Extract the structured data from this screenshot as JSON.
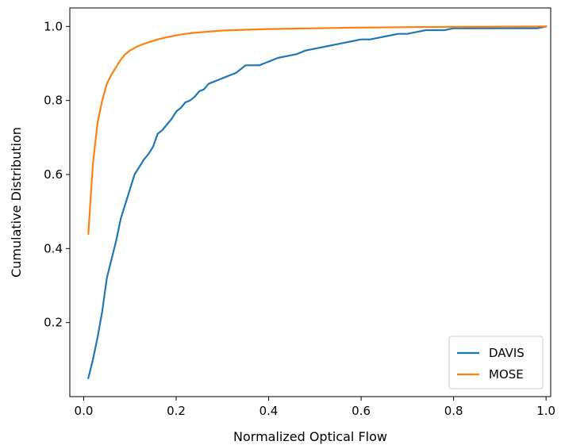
{
  "chart_data": {
    "type": "line",
    "title": "",
    "xlabel": "Normalized Optical Flow",
    "ylabel": "Cumulative Distribution",
    "xlim": [
      -0.03,
      1.01
    ],
    "ylim": [
      0.0,
      1.05
    ],
    "xticks": [
      0.0,
      0.2,
      0.4,
      0.6,
      0.8,
      1.0
    ],
    "xtick_labels": [
      "0.0",
      "0.2",
      "0.4",
      "0.6",
      "0.8",
      "1.0"
    ],
    "yticks": [
      0.2,
      0.4,
      0.6,
      0.8,
      1.0
    ],
    "ytick_labels": [
      "0.2",
      "0.4",
      "0.6",
      "0.8",
      "1.0"
    ],
    "grid": false,
    "legend": "lower-right",
    "series": [
      {
        "name": "DAVIS",
        "color": "#1f77b4",
        "x": [
          0.01,
          0.02,
          0.03,
          0.04,
          0.05,
          0.06,
          0.07,
          0.08,
          0.09,
          0.1,
          0.11,
          0.12,
          0.13,
          0.14,
          0.15,
          0.16,
          0.17,
          0.18,
          0.19,
          0.2,
          0.21,
          0.22,
          0.23,
          0.24,
          0.25,
          0.26,
          0.27,
          0.28,
          0.29,
          0.3,
          0.31,
          0.32,
          0.33,
          0.34,
          0.35,
          0.36,
          0.37,
          0.38,
          0.39,
          0.4,
          0.42,
          0.44,
          0.46,
          0.48,
          0.5,
          0.52,
          0.54,
          0.56,
          0.58,
          0.6,
          0.62,
          0.64,
          0.66,
          0.68,
          0.7,
          0.72,
          0.74,
          0.76,
          0.78,
          0.8,
          0.85,
          0.9,
          0.95,
          0.98,
          1.0
        ],
        "values": [
          0.05,
          0.1,
          0.16,
          0.23,
          0.32,
          0.37,
          0.42,
          0.48,
          0.52,
          0.56,
          0.6,
          0.62,
          0.64,
          0.655,
          0.675,
          0.71,
          0.72,
          0.735,
          0.75,
          0.77,
          0.78,
          0.795,
          0.8,
          0.81,
          0.825,
          0.83,
          0.845,
          0.85,
          0.855,
          0.86,
          0.865,
          0.87,
          0.875,
          0.885,
          0.895,
          0.895,
          0.895,
          0.895,
          0.9,
          0.905,
          0.915,
          0.92,
          0.925,
          0.935,
          0.94,
          0.945,
          0.95,
          0.955,
          0.96,
          0.965,
          0.965,
          0.97,
          0.975,
          0.98,
          0.98,
          0.985,
          0.99,
          0.99,
          0.99,
          0.995,
          0.995,
          0.995,
          0.995,
          0.995,
          1.0
        ]
      },
      {
        "name": "MOSE",
        "color": "#ff7f0e",
        "x": [
          0.01,
          0.02,
          0.03,
          0.04,
          0.05,
          0.06,
          0.07,
          0.08,
          0.09,
          0.1,
          0.11,
          0.12,
          0.13,
          0.14,
          0.15,
          0.16,
          0.17,
          0.18,
          0.2,
          0.22,
          0.24,
          0.26,
          0.28,
          0.3,
          0.35,
          0.4,
          0.45,
          0.5,
          0.55,
          0.6,
          0.7,
          0.8,
          0.9,
          1.0
        ],
        "values": [
          0.44,
          0.63,
          0.74,
          0.8,
          0.845,
          0.87,
          0.89,
          0.91,
          0.925,
          0.935,
          0.942,
          0.948,
          0.953,
          0.957,
          0.961,
          0.965,
          0.968,
          0.971,
          0.976,
          0.98,
          0.983,
          0.985,
          0.987,
          0.989,
          0.991,
          0.993,
          0.994,
          0.995,
          0.996,
          0.997,
          0.998,
          0.999,
          0.9995,
          1.0
        ]
      }
    ]
  }
}
